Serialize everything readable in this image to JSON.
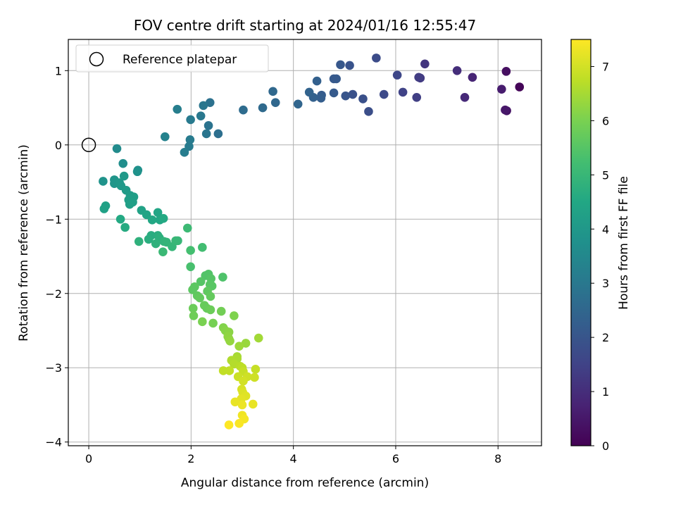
{
  "chart_data": {
    "type": "scatter",
    "title": "FOV centre drift starting at 2024/01/16 12:55:47",
    "xlabel": "Angular distance from reference (arcmin)",
    "ylabel": "Rotation from reference (arcmin)",
    "xlim": [
      -0.4,
      8.85
    ],
    "ylim": [
      -4.05,
      1.42
    ],
    "xticks": [
      0,
      2,
      4,
      6,
      8
    ],
    "yticks": [
      1,
      0,
      -1,
      -2,
      -3,
      -4
    ],
    "xtick_labels": [
      "0",
      "2",
      "4",
      "6",
      "8"
    ],
    "ytick_labels": [
      "1",
      "0",
      "−1",
      "−2",
      "−3",
      "−4"
    ],
    "grid": true,
    "legend": {
      "position": "top-left",
      "entries": [
        "Reference platepar"
      ]
    },
    "reference_point": {
      "x": 0,
      "y": 0
    },
    "colorbar": {
      "label": "Hours from first FF file",
      "colormap": "viridis",
      "range": [
        0,
        7.5
      ],
      "ticks": [
        0,
        1,
        2,
        3,
        4,
        5,
        6,
        7
      ],
      "tick_labels": [
        "0",
        "1",
        "2",
        "3",
        "4",
        "5",
        "6",
        "7"
      ]
    },
    "points": [
      {
        "x": 8.42,
        "y": 0.78,
        "t": 0.1
      },
      {
        "x": 8.16,
        "y": 0.99,
        "t": 0.3
      },
      {
        "x": 8.17,
        "y": 0.46,
        "t": 0.4
      },
      {
        "x": 8.14,
        "y": 0.47,
        "t": 0.5
      },
      {
        "x": 8.07,
        "y": 0.75,
        "t": 0.6
      },
      {
        "x": 7.5,
        "y": 0.91,
        "t": 0.8
      },
      {
        "x": 7.35,
        "y": 0.64,
        "t": 0.9
      },
      {
        "x": 7.2,
        "y": 1.0,
        "t": 1.0
      },
      {
        "x": 6.57,
        "y": 1.09,
        "t": 1.2
      },
      {
        "x": 6.48,
        "y": 0.9,
        "t": 1.3
      },
      {
        "x": 6.45,
        "y": 0.91,
        "t": 1.35
      },
      {
        "x": 6.41,
        "y": 0.64,
        "t": 1.4
      },
      {
        "x": 6.14,
        "y": 0.71,
        "t": 1.5
      },
      {
        "x": 6.03,
        "y": 0.94,
        "t": 1.6
      },
      {
        "x": 5.77,
        "y": 0.68,
        "t": 1.7
      },
      {
        "x": 5.62,
        "y": 1.17,
        "t": 1.75
      },
      {
        "x": 5.47,
        "y": 0.45,
        "t": 1.8
      },
      {
        "x": 5.36,
        "y": 0.62,
        "t": 1.85
      },
      {
        "x": 5.16,
        "y": 0.68,
        "t": 1.9
      },
      {
        "x": 5.1,
        "y": 1.07,
        "t": 1.95
      },
      {
        "x": 5.02,
        "y": 0.66,
        "t": 2.0
      },
      {
        "x": 4.92,
        "y": 1.08,
        "t": 2.05
      },
      {
        "x": 4.84,
        "y": 0.89,
        "t": 2.1
      },
      {
        "x": 4.79,
        "y": 0.89,
        "t": 2.1
      },
      {
        "x": 4.79,
        "y": 0.7,
        "t": 2.15
      },
      {
        "x": 4.55,
        "y": 0.67,
        "t": 2.2
      },
      {
        "x": 4.54,
        "y": 0.63,
        "t": 2.25
      },
      {
        "x": 4.46,
        "y": 0.86,
        "t": 2.3
      },
      {
        "x": 4.39,
        "y": 0.64,
        "t": 2.35
      },
      {
        "x": 4.31,
        "y": 0.71,
        "t": 2.4
      },
      {
        "x": 4.09,
        "y": 0.55,
        "t": 2.45
      },
      {
        "x": 3.65,
        "y": 0.57,
        "t": 2.5
      },
      {
        "x": 3.6,
        "y": 0.72,
        "t": 2.55
      },
      {
        "x": 3.4,
        "y": 0.5,
        "t": 2.6
      },
      {
        "x": 3.02,
        "y": 0.47,
        "t": 2.65
      },
      {
        "x": 2.53,
        "y": 0.15,
        "t": 2.75
      },
      {
        "x": 2.37,
        "y": 0.57,
        "t": 2.8
      },
      {
        "x": 2.34,
        "y": 0.26,
        "t": 2.85
      },
      {
        "x": 2.3,
        "y": 0.15,
        "t": 2.9
      },
      {
        "x": 2.24,
        "y": 0.53,
        "t": 2.95
      },
      {
        "x": 2.19,
        "y": 0.39,
        "t": 3.0
      },
      {
        "x": 1.99,
        "y": 0.34,
        "t": 3.05
      },
      {
        "x": 1.98,
        "y": 0.07,
        "t": 3.1
      },
      {
        "x": 1.96,
        "y": -0.02,
        "t": 3.1
      },
      {
        "x": 1.87,
        "y": -0.1,
        "t": 3.15
      },
      {
        "x": 1.73,
        "y": 0.48,
        "t": 3.2
      },
      {
        "x": 1.49,
        "y": 0.11,
        "t": 3.3
      },
      {
        "x": 0.55,
        "y": -0.05,
        "t": 3.6
      },
      {
        "x": 0.67,
        "y": -0.25,
        "t": 3.7
      },
      {
        "x": 0.96,
        "y": -0.34,
        "t": 3.75
      },
      {
        "x": 0.95,
        "y": -0.36,
        "t": 3.8
      },
      {
        "x": 0.28,
        "y": -0.49,
        "t": 3.85
      },
      {
        "x": 0.5,
        "y": -0.47,
        "t": 3.9
      },
      {
        "x": 0.5,
        "y": -0.52,
        "t": 3.95
      },
      {
        "x": 0.6,
        "y": -0.51,
        "t": 4.0
      },
      {
        "x": 0.63,
        "y": -0.55,
        "t": 4.05
      },
      {
        "x": 0.69,
        "y": -0.42,
        "t": 4.05
      },
      {
        "x": 0.73,
        "y": -0.61,
        "t": 4.1
      },
      {
        "x": 0.81,
        "y": -0.68,
        "t": 4.15
      },
      {
        "x": 0.78,
        "y": -0.74,
        "t": 4.2
      },
      {
        "x": 0.88,
        "y": -0.7,
        "t": 4.2
      },
      {
        "x": 0.86,
        "y": -0.77,
        "t": 4.25
      },
      {
        "x": 0.8,
        "y": -0.8,
        "t": 4.25
      },
      {
        "x": 0.33,
        "y": -0.82,
        "t": 4.3
      },
      {
        "x": 0.3,
        "y": -0.86,
        "t": 4.3
      },
      {
        "x": 1.03,
        "y": -0.88,
        "t": 4.35
      },
      {
        "x": 1.13,
        "y": -0.94,
        "t": 4.4
      },
      {
        "x": 1.35,
        "y": -0.91,
        "t": 4.45
      },
      {
        "x": 1.24,
        "y": -1.01,
        "t": 4.5
      },
      {
        "x": 1.39,
        "y": -1.01,
        "t": 4.5
      },
      {
        "x": 1.46,
        "y": -0.99,
        "t": 4.55
      },
      {
        "x": 0.62,
        "y": -1.0,
        "t": 4.55
      },
      {
        "x": 0.71,
        "y": -1.11,
        "t": 4.6
      },
      {
        "x": 1.22,
        "y": -1.22,
        "t": 4.65
      },
      {
        "x": 1.17,
        "y": -1.27,
        "t": 4.7
      },
      {
        "x": 1.35,
        "y": -1.22,
        "t": 4.7
      },
      {
        "x": 1.38,
        "y": -1.25,
        "t": 4.75
      },
      {
        "x": 1.31,
        "y": -1.33,
        "t": 4.8
      },
      {
        "x": 0.98,
        "y": -1.3,
        "t": 4.8
      },
      {
        "x": 1.47,
        "y": -1.3,
        "t": 4.85
      },
      {
        "x": 1.52,
        "y": -1.31,
        "t": 4.9
      },
      {
        "x": 1.63,
        "y": -1.37,
        "t": 4.95
      },
      {
        "x": 1.7,
        "y": -1.29,
        "t": 5.0
      },
      {
        "x": 1.74,
        "y": -1.29,
        "t": 5.0
      },
      {
        "x": 1.45,
        "y": -1.44,
        "t": 5.05
      },
      {
        "x": 1.93,
        "y": -1.12,
        "t": 5.1
      },
      {
        "x": 2.22,
        "y": -1.38,
        "t": 5.2
      },
      {
        "x": 1.99,
        "y": -1.42,
        "t": 5.25
      },
      {
        "x": 1.99,
        "y": -1.64,
        "t": 5.3
      },
      {
        "x": 2.62,
        "y": -1.78,
        "t": 5.4
      },
      {
        "x": 2.34,
        "y": -1.74,
        "t": 5.45
      },
      {
        "x": 2.28,
        "y": -1.76,
        "t": 5.45
      },
      {
        "x": 2.39,
        "y": -1.8,
        "t": 5.5
      },
      {
        "x": 2.19,
        "y": -1.84,
        "t": 5.5
      },
      {
        "x": 2.37,
        "y": -1.88,
        "t": 5.55
      },
      {
        "x": 2.41,
        "y": -1.9,
        "t": 5.55
      },
      {
        "x": 2.07,
        "y": -1.91,
        "t": 5.6
      },
      {
        "x": 2.03,
        "y": -1.95,
        "t": 5.6
      },
      {
        "x": 2.32,
        "y": -1.97,
        "t": 5.65
      },
      {
        "x": 2.12,
        "y": -2.03,
        "t": 5.65
      },
      {
        "x": 2.17,
        "y": -2.06,
        "t": 5.7
      },
      {
        "x": 2.38,
        "y": -2.04,
        "t": 5.7
      },
      {
        "x": 2.26,
        "y": -2.16,
        "t": 5.75
      },
      {
        "x": 2.31,
        "y": -2.2,
        "t": 5.75
      },
      {
        "x": 2.04,
        "y": -2.2,
        "t": 5.8
      },
      {
        "x": 2.38,
        "y": -2.22,
        "t": 5.8
      },
      {
        "x": 2.05,
        "y": -2.3,
        "t": 5.85
      },
      {
        "x": 2.59,
        "y": -2.24,
        "t": 5.9
      },
      {
        "x": 2.43,
        "y": -2.4,
        "t": 5.95
      },
      {
        "x": 2.22,
        "y": -2.38,
        "t": 6.0
      },
      {
        "x": 2.84,
        "y": -2.3,
        "t": 6.05
      },
      {
        "x": 2.63,
        "y": -2.46,
        "t": 6.1
      },
      {
        "x": 2.67,
        "y": -2.5,
        "t": 6.15
      },
      {
        "x": 2.74,
        "y": -2.52,
        "t": 6.2
      },
      {
        "x": 2.72,
        "y": -2.58,
        "t": 6.25
      },
      {
        "x": 2.74,
        "y": -2.61,
        "t": 6.25
      },
      {
        "x": 2.76,
        "y": -2.64,
        "t": 6.3
      },
      {
        "x": 3.07,
        "y": -2.67,
        "t": 6.35
      },
      {
        "x": 2.94,
        "y": -2.71,
        "t": 6.4
      },
      {
        "x": 3.32,
        "y": -2.6,
        "t": 6.45
      },
      {
        "x": 2.9,
        "y": -2.85,
        "t": 6.5
      },
      {
        "x": 2.9,
        "y": -2.88,
        "t": 6.55
      },
      {
        "x": 2.79,
        "y": -2.9,
        "t": 6.6
      },
      {
        "x": 2.84,
        "y": -2.95,
        "t": 6.65
      },
      {
        "x": 2.96,
        "y": -2.98,
        "t": 6.7
      },
      {
        "x": 3.0,
        "y": -3.0,
        "t": 6.75
      },
      {
        "x": 2.63,
        "y": -3.04,
        "t": 6.8
      },
      {
        "x": 2.75,
        "y": -3.04,
        "t": 6.8
      },
      {
        "x": 3.02,
        "y": -3.05,
        "t": 6.85
      },
      {
        "x": 3.26,
        "y": -3.02,
        "t": 6.85
      },
      {
        "x": 2.92,
        "y": -3.12,
        "t": 6.9
      },
      {
        "x": 3.1,
        "y": -3.12,
        "t": 6.95
      },
      {
        "x": 3.24,
        "y": -3.13,
        "t": 6.95
      },
      {
        "x": 3.02,
        "y": -3.18,
        "t": 7.0
      },
      {
        "x": 2.99,
        "y": -3.29,
        "t": 7.05
      },
      {
        "x": 3.01,
        "y": -3.33,
        "t": 7.1
      },
      {
        "x": 3.07,
        "y": -3.38,
        "t": 7.15
      },
      {
        "x": 2.98,
        "y": -3.42,
        "t": 7.2
      },
      {
        "x": 2.86,
        "y": -3.46,
        "t": 7.25
      },
      {
        "x": 3.21,
        "y": -3.49,
        "t": 7.25
      },
      {
        "x": 3.0,
        "y": -3.5,
        "t": 7.3
      },
      {
        "x": 3.0,
        "y": -3.64,
        "t": 7.35
      },
      {
        "x": 3.04,
        "y": -3.69,
        "t": 7.4
      },
      {
        "x": 2.94,
        "y": -3.75,
        "t": 7.45
      },
      {
        "x": 2.74,
        "y": -3.77,
        "t": 7.5
      }
    ]
  }
}
